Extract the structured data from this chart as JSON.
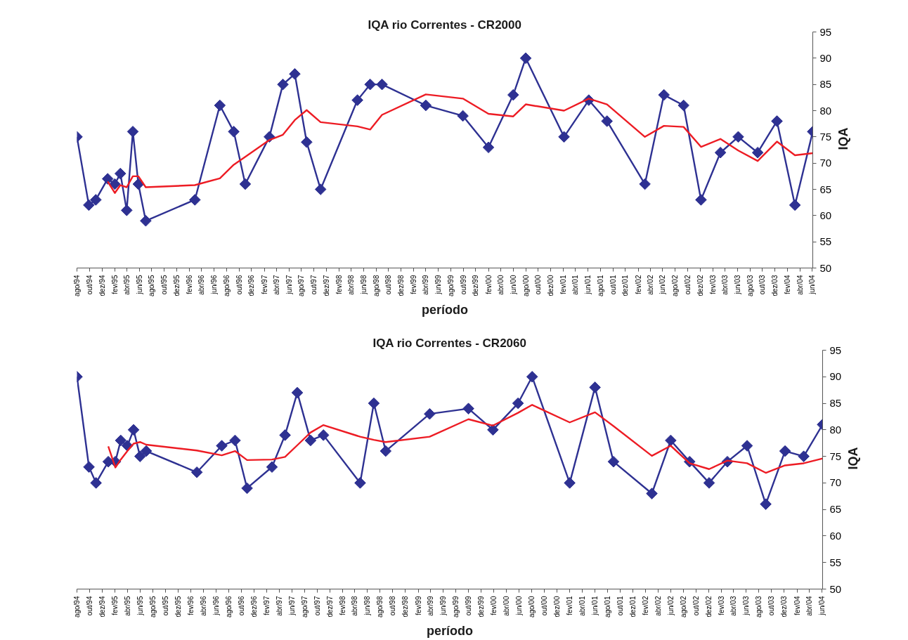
{
  "chart_data": [
    {
      "type": "line",
      "title": "IQA rio Correntes - CR2000",
      "xlabel": "período",
      "ylabel": "IQA",
      "x": [
        "1994-08-01",
        "1994-09-28",
        "1994-11-01",
        "1994-12-29",
        "1995-02-02",
        "1995-03-01",
        "1995-04-01",
        "1995-05-01",
        "1995-05-28",
        "1995-07-03",
        "1996-02-28",
        "1996-06-29",
        "1996-09-05",
        "1996-10-31",
        "1997-02-26",
        "1997-05-03",
        "1997-06-30",
        "1997-08-27",
        "1997-11-03",
        "1998-05-02",
        "1998-07-03",
        "1998-08-30",
        "1999-04-01",
        "1999-09-29",
        "2000-02-01",
        "2000-06-01",
        "2000-08-01",
        "2001-02-04",
        "2001-06-05",
        "2001-09-02",
        "2002-03-06",
        "2002-06-07",
        "2002-09-11",
        "2002-12-05",
        "2003-03-10",
        "2003-06-05",
        "2003-09-08",
        "2003-12-11",
        "2004-03-08",
        "2004-06-03"
      ],
      "xlim": [
        "1994-08-01",
        "2004-06-03"
      ],
      "xticks": [
        {
          "value": "1994-08",
          "label": "ago/94"
        },
        {
          "value": "1994-10",
          "label": "out/94"
        },
        {
          "value": "1994-12",
          "label": "dez/94"
        },
        {
          "value": "1995-02",
          "label": "fev/95"
        },
        {
          "value": "1995-04",
          "label": "abr/95"
        },
        {
          "value": "1995-06",
          "label": "jun/95"
        },
        {
          "value": "1995-08",
          "label": "ago/95"
        },
        {
          "value": "1995-10",
          "label": "out/95"
        },
        {
          "value": "1995-12",
          "label": "dez/95"
        },
        {
          "value": "1996-02",
          "label": "fev/96"
        },
        {
          "value": "1996-04",
          "label": "abr/96"
        },
        {
          "value": "1996-06",
          "label": "jun/96"
        },
        {
          "value": "1996-08",
          "label": "ago/96"
        },
        {
          "value": "1996-10",
          "label": "out/96"
        },
        {
          "value": "1996-12",
          "label": "dez/96"
        },
        {
          "value": "1997-02",
          "label": "fev/97"
        },
        {
          "value": "1997-04",
          "label": "abr/97"
        },
        {
          "value": "1997-06",
          "label": "jun/97"
        },
        {
          "value": "1997-08",
          "label": "ago/97"
        },
        {
          "value": "1997-10",
          "label": "out/97"
        },
        {
          "value": "1997-12",
          "label": "dez/97"
        },
        {
          "value": "1998-02",
          "label": "fev/98"
        },
        {
          "value": "1998-04",
          "label": "abr/98"
        },
        {
          "value": "1998-06",
          "label": "jun/98"
        },
        {
          "value": "1998-08",
          "label": "ago/98"
        },
        {
          "value": "1998-10",
          "label": "out/98"
        },
        {
          "value": "1998-12",
          "label": "dez/98"
        },
        {
          "value": "1999-02",
          "label": "fev/99"
        },
        {
          "value": "1999-04",
          "label": "abr/99"
        },
        {
          "value": "1999-06",
          "label": "jun/99"
        },
        {
          "value": "1999-08",
          "label": "ago/99"
        },
        {
          "value": "1999-10",
          "label": "out/99"
        },
        {
          "value": "1999-12",
          "label": "dez/99"
        },
        {
          "value": "2000-02",
          "label": "fev/00"
        },
        {
          "value": "2000-04",
          "label": "abr/00"
        },
        {
          "value": "2000-06",
          "label": "jun/00"
        },
        {
          "value": "2000-08",
          "label": "ago/00"
        },
        {
          "value": "2000-10",
          "label": "out/00"
        },
        {
          "value": "2000-12",
          "label": "dez/00"
        },
        {
          "value": "2001-02",
          "label": "fev/01"
        },
        {
          "value": "2001-04",
          "label": "abr/01"
        },
        {
          "value": "2001-06",
          "label": "jun/01"
        },
        {
          "value": "2001-08",
          "label": "ago/01"
        },
        {
          "value": "2001-10",
          "label": "out/01"
        },
        {
          "value": "2001-12",
          "label": "dez/01"
        },
        {
          "value": "2002-02",
          "label": "fev/02"
        },
        {
          "value": "2002-04",
          "label": "abr/02"
        },
        {
          "value": "2002-06",
          "label": "jun/02"
        },
        {
          "value": "2002-08",
          "label": "ago/02"
        },
        {
          "value": "2002-10",
          "label": "out/02"
        },
        {
          "value": "2002-12",
          "label": "dez/02"
        },
        {
          "value": "2003-02",
          "label": "fev/03"
        },
        {
          "value": "2003-04",
          "label": "abr/03"
        },
        {
          "value": "2003-06",
          "label": "jun/03"
        },
        {
          "value": "2003-08",
          "label": "ago/03"
        },
        {
          "value": "2003-10",
          "label": "out/03"
        },
        {
          "value": "2003-12",
          "label": "dez/03"
        },
        {
          "value": "2004-02",
          "label": "fev/04"
        },
        {
          "value": "2004-04",
          "label": "abr/04"
        },
        {
          "value": "2004-06",
          "label": "jun/04"
        }
      ],
      "ylim": [
        50,
        95
      ],
      "yticks": [
        50,
        55,
        60,
        65,
        70,
        75,
        80,
        85,
        90,
        95
      ],
      "series": [
        {
          "color": "#2e3192",
          "marker": "diamond",
          "values": [
            75,
            62,
            63,
            67,
            66,
            68,
            61,
            76,
            66,
            59,
            63,
            81,
            76,
            66,
            75,
            85,
            87,
            74,
            65,
            82,
            85,
            85,
            81,
            79,
            73,
            83,
            90,
            75,
            82,
            78,
            66,
            83,
            81,
            63,
            72,
            75,
            72,
            78,
            62,
            76
          ]
        },
        {
          "color": "#ed1c24",
          "marker": "none",
          "values": [
            null,
            null,
            null,
            66.5,
            64.3,
            65.8,
            65.4,
            67.5,
            67.5,
            65.4,
            65.8,
            67.1,
            69.7,
            71.2,
            74.4,
            75.4,
            78.2,
            80.1,
            77.8,
            77.0,
            76.4,
            79.2,
            83.1,
            82.3,
            79.4,
            78.9,
            81.2,
            80.0,
            82.3,
            81.2,
            75.0,
            77.1,
            76.9,
            73.1,
            74.6,
            72.4,
            70.4,
            74.1,
            71.5,
            71.9
          ]
        }
      ]
    },
    {
      "type": "line",
      "title": "IQA rio Correntes - CR2060",
      "xlabel": "período",
      "ylabel": "IQA",
      "x": [
        "1994-08-01",
        "1994-09-28",
        "1994-11-01",
        "1994-12-30",
        "1995-02-02",
        "1995-02-28",
        "1995-04-01",
        "1995-05-01",
        "1995-06-01",
        "1995-07-01",
        "1996-03-01",
        "1996-06-29",
        "1996-09-01",
        "1996-10-29",
        "1997-02-26",
        "1997-04-30",
        "1997-06-28",
        "1997-08-31",
        "1997-11-01",
        "1998-04-27",
        "1998-07-02",
        "1998-08-28",
        "1999-03-28",
        "1999-10-01",
        "2000-01-27",
        "2000-05-27",
        "2000-08-03",
        "2001-01-31",
        "2001-06-02",
        "2001-08-30",
        "2002-03-03",
        "2002-06-02",
        "2002-09-01",
        "2002-12-04",
        "2003-03-02",
        "2003-06-05",
        "2003-09-03",
        "2003-12-05",
        "2004-03-04",
        "2004-06-03"
      ],
      "xlim": [
        "1994-08-01",
        "2004-06-03"
      ],
      "xticks": [
        {
          "value": "1994-08",
          "label": "ago/94"
        },
        {
          "value": "1994-10",
          "label": "out/94"
        },
        {
          "value": "1994-12",
          "label": "dez/94"
        },
        {
          "value": "1995-02",
          "label": "fev/95"
        },
        {
          "value": "1995-04",
          "label": "abr/95"
        },
        {
          "value": "1995-06",
          "label": "jun/95"
        },
        {
          "value": "1995-08",
          "label": "ago/95"
        },
        {
          "value": "1995-10",
          "label": "out/95"
        },
        {
          "value": "1995-12",
          "label": "dez/95"
        },
        {
          "value": "1996-02",
          "label": "fev/96"
        },
        {
          "value": "1996-04",
          "label": "abr/96"
        },
        {
          "value": "1996-06",
          "label": "jun/96"
        },
        {
          "value": "1996-08",
          "label": "ago/96"
        },
        {
          "value": "1996-10",
          "label": "out/96"
        },
        {
          "value": "1996-12",
          "label": "dez/96"
        },
        {
          "value": "1997-02",
          "label": "fev/97"
        },
        {
          "value": "1997-04",
          "label": "abr/97"
        },
        {
          "value": "1997-06",
          "label": "jun/97"
        },
        {
          "value": "1997-08",
          "label": "ago/97"
        },
        {
          "value": "1997-10",
          "label": "out/97"
        },
        {
          "value": "1997-12",
          "label": "dez/97"
        },
        {
          "value": "1998-02",
          "label": "fev/98"
        },
        {
          "value": "1998-04",
          "label": "abr/98"
        },
        {
          "value": "1998-06",
          "label": "jun/98"
        },
        {
          "value": "1998-08",
          "label": "ago/98"
        },
        {
          "value": "1998-10",
          "label": "out/98"
        },
        {
          "value": "1998-12",
          "label": "dez/98"
        },
        {
          "value": "1999-02",
          "label": "fev/99"
        },
        {
          "value": "1999-04",
          "label": "abr/99"
        },
        {
          "value": "1999-06",
          "label": "jun/99"
        },
        {
          "value": "1999-08",
          "label": "ago/99"
        },
        {
          "value": "1999-10",
          "label": "out/99"
        },
        {
          "value": "1999-12",
          "label": "dez/99"
        },
        {
          "value": "2000-02",
          "label": "fev/00"
        },
        {
          "value": "2000-04",
          "label": "abr/00"
        },
        {
          "value": "2000-06",
          "label": "jun/00"
        },
        {
          "value": "2000-08",
          "label": "ago/00"
        },
        {
          "value": "2000-10",
          "label": "out/00"
        },
        {
          "value": "2000-12",
          "label": "dez/00"
        },
        {
          "value": "2001-02",
          "label": "fev/01"
        },
        {
          "value": "2001-04",
          "label": "abr/01"
        },
        {
          "value": "2001-06",
          "label": "jun/01"
        },
        {
          "value": "2001-08",
          "label": "ago/01"
        },
        {
          "value": "2001-10",
          "label": "out/01"
        },
        {
          "value": "2001-12",
          "label": "dez/01"
        },
        {
          "value": "2002-02",
          "label": "fev/02"
        },
        {
          "value": "2002-04",
          "label": "abr/02"
        },
        {
          "value": "2002-06",
          "label": "jun/02"
        },
        {
          "value": "2002-08",
          "label": "ago/02"
        },
        {
          "value": "2002-10",
          "label": "out/02"
        },
        {
          "value": "2002-12",
          "label": "dez/02"
        },
        {
          "value": "2003-02",
          "label": "fev/03"
        },
        {
          "value": "2003-04",
          "label": "abr/03"
        },
        {
          "value": "2003-06",
          "label": "jun/03"
        },
        {
          "value": "2003-08",
          "label": "ago/03"
        },
        {
          "value": "2003-10",
          "label": "out/03"
        },
        {
          "value": "2003-12",
          "label": "dez/03"
        },
        {
          "value": "2004-02",
          "label": "fev/04"
        },
        {
          "value": "2004-04",
          "label": "abr/04"
        },
        {
          "value": "2004-06",
          "label": "jun/04"
        }
      ],
      "ylim": [
        50,
        95
      ],
      "yticks": [
        50,
        55,
        60,
        65,
        70,
        75,
        80,
        85,
        90,
        95
      ],
      "series": [
        {
          "color": "#2e3192",
          "marker": "diamond",
          "values": [
            90,
            73,
            70,
            74,
            74,
            78,
            77,
            80,
            75,
            76,
            72,
            77,
            78,
            69,
            73,
            79,
            87,
            78,
            79,
            70,
            85,
            76,
            83,
            84,
            80,
            85,
            90,
            70,
            88,
            74,
            68,
            78,
            74,
            70,
            74,
            77,
            66,
            76,
            75,
            81
          ]
        },
        {
          "color": "#ed1c24",
          "marker": "none",
          "values": [
            null,
            null,
            null,
            76.9,
            72.9,
            74.4,
            76.0,
            77.4,
            77.7,
            77.2,
            76.1,
            75.2,
            76.0,
            74.3,
            74.4,
            74.9,
            77.1,
            79.5,
            80.9,
            78.7,
            78.1,
            77.7,
            78.7,
            82.0,
            80.8,
            83.2,
            84.7,
            81.4,
            83.3,
            80.7,
            75.1,
            77.0,
            73.7,
            72.6,
            74.2,
            73.7,
            71.9,
            73.3,
            73.7,
            74.6
          ]
        }
      ]
    }
  ]
}
